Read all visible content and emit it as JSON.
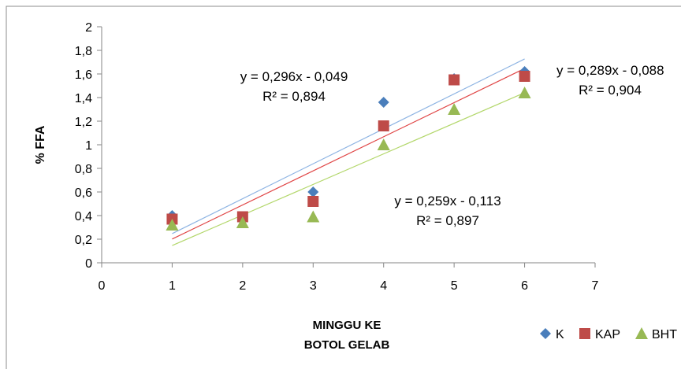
{
  "chart_data": {
    "type": "scatter",
    "title": "",
    "xlabel": [
      "MINGGU KE",
      "BOTOL GELAB"
    ],
    "ylabel": "% FFA",
    "xlim": [
      0,
      7
    ],
    "ylim": [
      0,
      2
    ],
    "x_ticks": [
      "0",
      "1",
      "2",
      "3",
      "4",
      "5",
      "6",
      "7"
    ],
    "y_ticks": [
      "0",
      "0,2",
      "0,4",
      "0,6",
      "0,8",
      "1",
      "1,2",
      "1,4",
      "1,6",
      "1,8",
      "2"
    ],
    "grid": false,
    "legend_position": "bottom-right",
    "series": [
      {
        "name": "K",
        "marker": "diamond",
        "color": "#4a7ebb",
        "trend_color": "#8eb4e3",
        "x": [
          1,
          2,
          3,
          4,
          5,
          6
        ],
        "y": [
          0.4,
          0.38,
          0.6,
          1.36,
          1.56,
          1.62
        ],
        "trendline": {
          "slope": 0.296,
          "intercept": -0.049
        },
        "equation": "y = 0,296x - 0,049",
        "r2": "R² = 0,894"
      },
      {
        "name": "KAP",
        "marker": "square",
        "color": "#be4b48",
        "trend_color": "#e04646",
        "x": [
          1,
          2,
          3,
          4,
          5,
          6
        ],
        "y": [
          0.37,
          0.39,
          0.52,
          1.16,
          1.55,
          1.58
        ],
        "trendline": {
          "slope": 0.289,
          "intercept": -0.088
        },
        "equation": "y = 0,289x - 0,088",
        "r2": "R² = 0,904"
      },
      {
        "name": "BHT",
        "marker": "triangle",
        "color": "#98b954",
        "trend_color": "#b3d76b",
        "x": [
          1,
          2,
          3,
          4,
          5,
          6
        ],
        "y": [
          0.32,
          0.34,
          0.39,
          1.0,
          1.3,
          1.44
        ],
        "trendline": {
          "slope": 0.259,
          "intercept": -0.113
        },
        "equation": "y = 0,259x - 0,113",
        "r2": "R² = 0,897"
      }
    ]
  }
}
